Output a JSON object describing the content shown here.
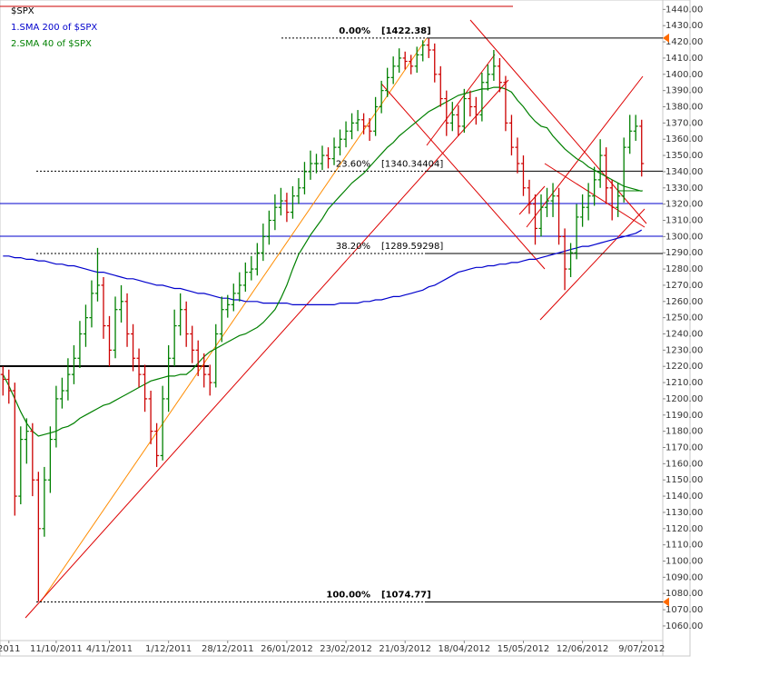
{
  "chart_data": {
    "type": "ohlc",
    "title": "$SPX",
    "grid": false,
    "up_color": "#008000",
    "down_color": "#cc0000",
    "categories": [
      null,
      "2011",
      null,
      null,
      null,
      null,
      null,
      null,
      null,
      "11/10/2011",
      null,
      null,
      null,
      null,
      null,
      null,
      null,
      null,
      "4/11/2011",
      null,
      null,
      null,
      null,
      null,
      null,
      null,
      null,
      null,
      "1/12/2011",
      null,
      null,
      null,
      null,
      null,
      null,
      null,
      null,
      null,
      "28/12/2011",
      null,
      null,
      null,
      null,
      null,
      null,
      null,
      null,
      null,
      "26/01/2012",
      null,
      null,
      null,
      null,
      null,
      null,
      null,
      null,
      null,
      "23/02/2012",
      null,
      null,
      null,
      null,
      null,
      null,
      null,
      null,
      null,
      "21/03/2012",
      null,
      null,
      null,
      null,
      null,
      null,
      null,
      null,
      null,
      "18/04/2012",
      null,
      null,
      null,
      null,
      null,
      null,
      null,
      null,
      null,
      "15/05/2012",
      null,
      null,
      null,
      null,
      null,
      null,
      null,
      null,
      null,
      "12/06/2012",
      null,
      null,
      null,
      null,
      null,
      null,
      null,
      null,
      null,
      "9/07/2012"
    ],
    "open": [
      1215,
      1212,
      1205,
      1140,
      1175,
      1180,
      1150,
      1120,
      1150,
      1175,
      1200,
      1205,
      1215,
      1225,
      1240,
      1250,
      1265,
      1270,
      1245,
      1230,
      1255,
      1260,
      1240,
      1225,
      1215,
      1200,
      1180,
      1165,
      1200,
      1225,
      1245,
      1255,
      1240,
      1230,
      1220,
      1215,
      1210,
      1240,
      1255,
      1258,
      1265,
      1270,
      1278,
      1280,
      1290,
      1300,
      1310,
      1318,
      1322,
      1315,
      1325,
      1330,
      1340,
      1345,
      1345,
      1350,
      1348,
      1355,
      1360,
      1365,
      1370,
      1372,
      1368,
      1365,
      1380,
      1390,
      1398,
      1405,
      1410,
      1408,
      1405,
      1412,
      1418,
      1415,
      1400,
      1385,
      1370,
      1375,
      1368,
      1385,
      1380,
      1375,
      1395,
      1400,
      1405,
      1395,
      1370,
      1355,
      1345,
      1330,
      1320,
      1305,
      1318,
      1322,
      1325,
      1300,
      1280,
      1290,
      1312,
      1318,
      1325,
      1335,
      1350,
      1330,
      1318,
      1325,
      1355,
      1365,
      1368
    ],
    "high": [
      1220,
      1218,
      1210,
      1183,
      1188,
      1185,
      1155,
      1158,
      1183,
      1208,
      1213,
      1225,
      1233,
      1248,
      1258,
      1273,
      1293,
      1275,
      1251,
      1263,
      1270,
      1265,
      1246,
      1231,
      1221,
      1205,
      1185,
      1208,
      1233,
      1255,
      1265,
      1260,
      1245,
      1236,
      1228,
      1221,
      1246,
      1263,
      1264,
      1271,
      1278,
      1284,
      1288,
      1296,
      1308,
      1316,
      1326,
      1330,
      1327,
      1331,
      1336,
      1346,
      1353,
      1351,
      1356,
      1355,
      1361,
      1366,
      1371,
      1376,
      1378,
      1376,
      1373,
      1386,
      1396,
      1404,
      1411,
      1416,
      1414,
      1412,
      1417,
      1421,
      1422,
      1419,
      1405,
      1390,
      1383,
      1381,
      1391,
      1390,
      1386,
      1401,
      1406,
      1415,
      1410,
      1399,
      1375,
      1361,
      1350,
      1335,
      1326,
      1326,
      1330,
      1333,
      1330,
      1305,
      1296,
      1320,
      1326,
      1333,
      1343,
      1360,
      1355,
      1335,
      1333,
      1361,
      1375,
      1375,
      1372
    ],
    "low": [
      1202,
      1197,
      1128,
      1135,
      1160,
      1140,
      1075,
      1115,
      1142,
      1170,
      1194,
      1199,
      1209,
      1219,
      1232,
      1244,
      1260,
      1237,
      1220,
      1225,
      1247,
      1232,
      1217,
      1207,
      1192,
      1172,
      1158,
      1162,
      1192,
      1220,
      1239,
      1232,
      1222,
      1214,
      1207,
      1202,
      1207,
      1235,
      1250,
      1254,
      1260,
      1266,
      1273,
      1276,
      1285,
      1295,
      1304,
      1313,
      1309,
      1311,
      1320,
      1326,
      1335,
      1339,
      1341,
      1342,
      1344,
      1350,
      1355,
      1360,
      1365,
      1363,
      1359,
      1362,
      1376,
      1386,
      1394,
      1401,
      1403,
      1400,
      1401,
      1408,
      1410,
      1395,
      1380,
      1362,
      1365,
      1362,
      1364,
      1374,
      1369,
      1371,
      1390,
      1396,
      1389,
      1365,
      1350,
      1339,
      1325,
      1314,
      1295,
      1300,
      1312,
      1312,
      1295,
      1267,
      1275,
      1286,
      1306,
      1310,
      1319,
      1330,
      1320,
      1310,
      1312,
      1321,
      1351,
      1359,
      1337
    ],
    "close": [
      1212,
      1205,
      1140,
      1175,
      1180,
      1150,
      1120,
      1150,
      1175,
      1200,
      1205,
      1215,
      1225,
      1240,
      1250,
      1265,
      1270,
      1245,
      1230,
      1255,
      1260,
      1240,
      1225,
      1215,
      1200,
      1180,
      1165,
      1200,
      1225,
      1245,
      1255,
      1240,
      1230,
      1220,
      1215,
      1210,
      1240,
      1255,
      1258,
      1265,
      1270,
      1278,
      1280,
      1290,
      1300,
      1310,
      1318,
      1322,
      1315,
      1325,
      1330,
      1340,
      1345,
      1345,
      1350,
      1348,
      1355,
      1360,
      1365,
      1370,
      1372,
      1368,
      1365,
      1380,
      1390,
      1398,
      1405,
      1410,
      1408,
      1405,
      1412,
      1418,
      1415,
      1400,
      1385,
      1370,
      1375,
      1368,
      1385,
      1380,
      1375,
      1395,
      1400,
      1405,
      1395,
      1370,
      1355,
      1345,
      1330,
      1320,
      1305,
      1318,
      1322,
      1325,
      1300,
      1280,
      1290,
      1312,
      1318,
      1325,
      1335,
      1350,
      1330,
      1318,
      1325,
      1355,
      1365,
      1368,
      1345
    ],
    "series": [
      {
        "name": "1.SMA 200  of $SPX",
        "color": "#0000cc",
        "values": [
          1288,
          1288,
          1287,
          1287,
          1286,
          1286,
          1285,
          1285,
          1284,
          1283,
          1283,
          1282,
          1282,
          1281,
          1280,
          1279,
          1278,
          1278,
          1277,
          1276,
          1275,
          1274,
          1274,
          1273,
          1272,
          1271,
          1270,
          1270,
          1269,
          1268,
          1268,
          1267,
          1266,
          1265,
          1265,
          1264,
          1263,
          1262,
          1262,
          1261,
          1261,
          1260,
          1260,
          1260,
          1259,
          1259,
          1259,
          1259,
          1259,
          1258,
          1258,
          1258,
          1258,
          1258,
          1258,
          1258,
          1258,
          1259,
          1259,
          1259,
          1259,
          1260,
          1260,
          1261,
          1261,
          1262,
          1263,
          1263,
          1264,
          1265,
          1266,
          1267,
          1269,
          1270,
          1272,
          1274,
          1276,
          1278,
          1279,
          1280,
          1281,
          1281,
          1282,
          1282,
          1283,
          1283,
          1284,
          1284,
          1285,
          1286,
          1286,
          1287,
          1288,
          1289,
          1290,
          1291,
          1292,
          1293,
          1294,
          1294,
          1295,
          1296,
          1297,
          1298,
          1299,
          1300,
          1301,
          1302,
          1304
        ]
      },
      {
        "name": "2.SMA 40  of $SPX",
        "color": "#008000",
        "values": [
          1215,
          1208,
          1200,
          1192,
          1185,
          1180,
          1177,
          1178,
          1179,
          1180,
          1182,
          1183,
          1185,
          1188,
          1190,
          1192,
          1194,
          1196,
          1197,
          1199,
          1201,
          1203,
          1205,
          1207,
          1209,
          1211,
          1212,
          1213,
          1214,
          1214,
          1215,
          1215,
          1218,
          1222,
          1226,
          1229,
          1231,
          1233,
          1235,
          1237,
          1239,
          1240,
          1242,
          1244,
          1247,
          1251,
          1255,
          1262,
          1270,
          1280,
          1289,
          1295,
          1301,
          1306,
          1311,
          1317,
          1321,
          1325,
          1329,
          1333,
          1336,
          1339,
          1343,
          1347,
          1351,
          1355,
          1358,
          1362,
          1365,
          1368,
          1371,
          1374,
          1377,
          1379,
          1381,
          1383,
          1385,
          1387,
          1388,
          1389,
          1390,
          1391,
          1391,
          1392,
          1392,
          1391,
          1389,
          1384,
          1380,
          1375,
          1371,
          1368,
          1367,
          1362,
          1358,
          1354,
          1351,
          1348,
          1346,
          1343,
          1341,
          1339,
          1337,
          1335,
          1333,
          1331,
          1330,
          1329,
          1328
        ]
      }
    ],
    "fib": [
      {
        "pct": "0.00%",
        "value": 1422.38,
        "label": "[1422.38]"
      },
      {
        "pct": "23.60%",
        "value": 1340.34404,
        "label": "[1340.34404]"
      },
      {
        "pct": "38.20%",
        "value": 1289.59298,
        "label": "[1289.59298]"
      },
      {
        "pct": "100.00%",
        "value": 1074.77,
        "label": "[1074.77]"
      }
    ],
    "ylim": [
      1051,
      1443
    ],
    "yticks": [
      {
        "value": 1060,
        "label": "1060.00"
      },
      {
        "value": 1070,
        "label": "1070.00"
      },
      {
        "value": 1080,
        "label": "1080.00"
      },
      {
        "value": 1090,
        "label": "1090.00"
      },
      {
        "value": 1100,
        "label": "1100.00"
      },
      {
        "value": 1110,
        "label": "1110.00"
      },
      {
        "value": 1120,
        "label": "1120.00"
      },
      {
        "value": 1130,
        "label": "1130.00"
      },
      {
        "value": 1140,
        "label": "1140.00"
      },
      {
        "value": 1150,
        "label": "1150.00"
      },
      {
        "value": 1160,
        "label": "1160.00"
      },
      {
        "value": 1170,
        "label": "1170.00"
      },
      {
        "value": 1180,
        "label": "1180.00"
      },
      {
        "value": 1190,
        "label": "1190.00"
      },
      {
        "value": 1200,
        "label": "1200.00"
      },
      {
        "value": 1210,
        "label": "1210.00"
      },
      {
        "value": 1220,
        "label": "1220.00"
      },
      {
        "value": 1230,
        "label": "1230.00"
      },
      {
        "value": 1240,
        "label": "1240.00"
      },
      {
        "value": 1250,
        "label": "1250.00"
      },
      {
        "value": 1260,
        "label": "1260.00"
      },
      {
        "value": 1270,
        "label": "1270.00"
      },
      {
        "value": 1280,
        "label": "1280.00"
      },
      {
        "value": 1290,
        "label": "1290.00"
      },
      {
        "value": 1300,
        "label": "1300.00"
      },
      {
        "value": 1310,
        "label": "1310.00"
      },
      {
        "value": 1320,
        "label": "1320.00"
      },
      {
        "value": 1330,
        "label": "1330.00"
      },
      {
        "value": 1340,
        "label": "1340.00"
      },
      {
        "value": 1350,
        "label": "1350.00"
      },
      {
        "value": 1360,
        "label": "1360.00"
      },
      {
        "value": 1370,
        "label": "1370.00"
      },
      {
        "value": 1380,
        "label": "1380.00"
      },
      {
        "value": 1390,
        "label": "1390.00"
      },
      {
        "value": 1400,
        "label": "1400.00"
      },
      {
        "value": 1410,
        "label": "1410.00"
      },
      {
        "value": 1420,
        "label": "1420.00"
      },
      {
        "value": 1430,
        "label": "1430.00"
      },
      {
        "value": 1440,
        "label": "1440.00"
      }
    ]
  }
}
